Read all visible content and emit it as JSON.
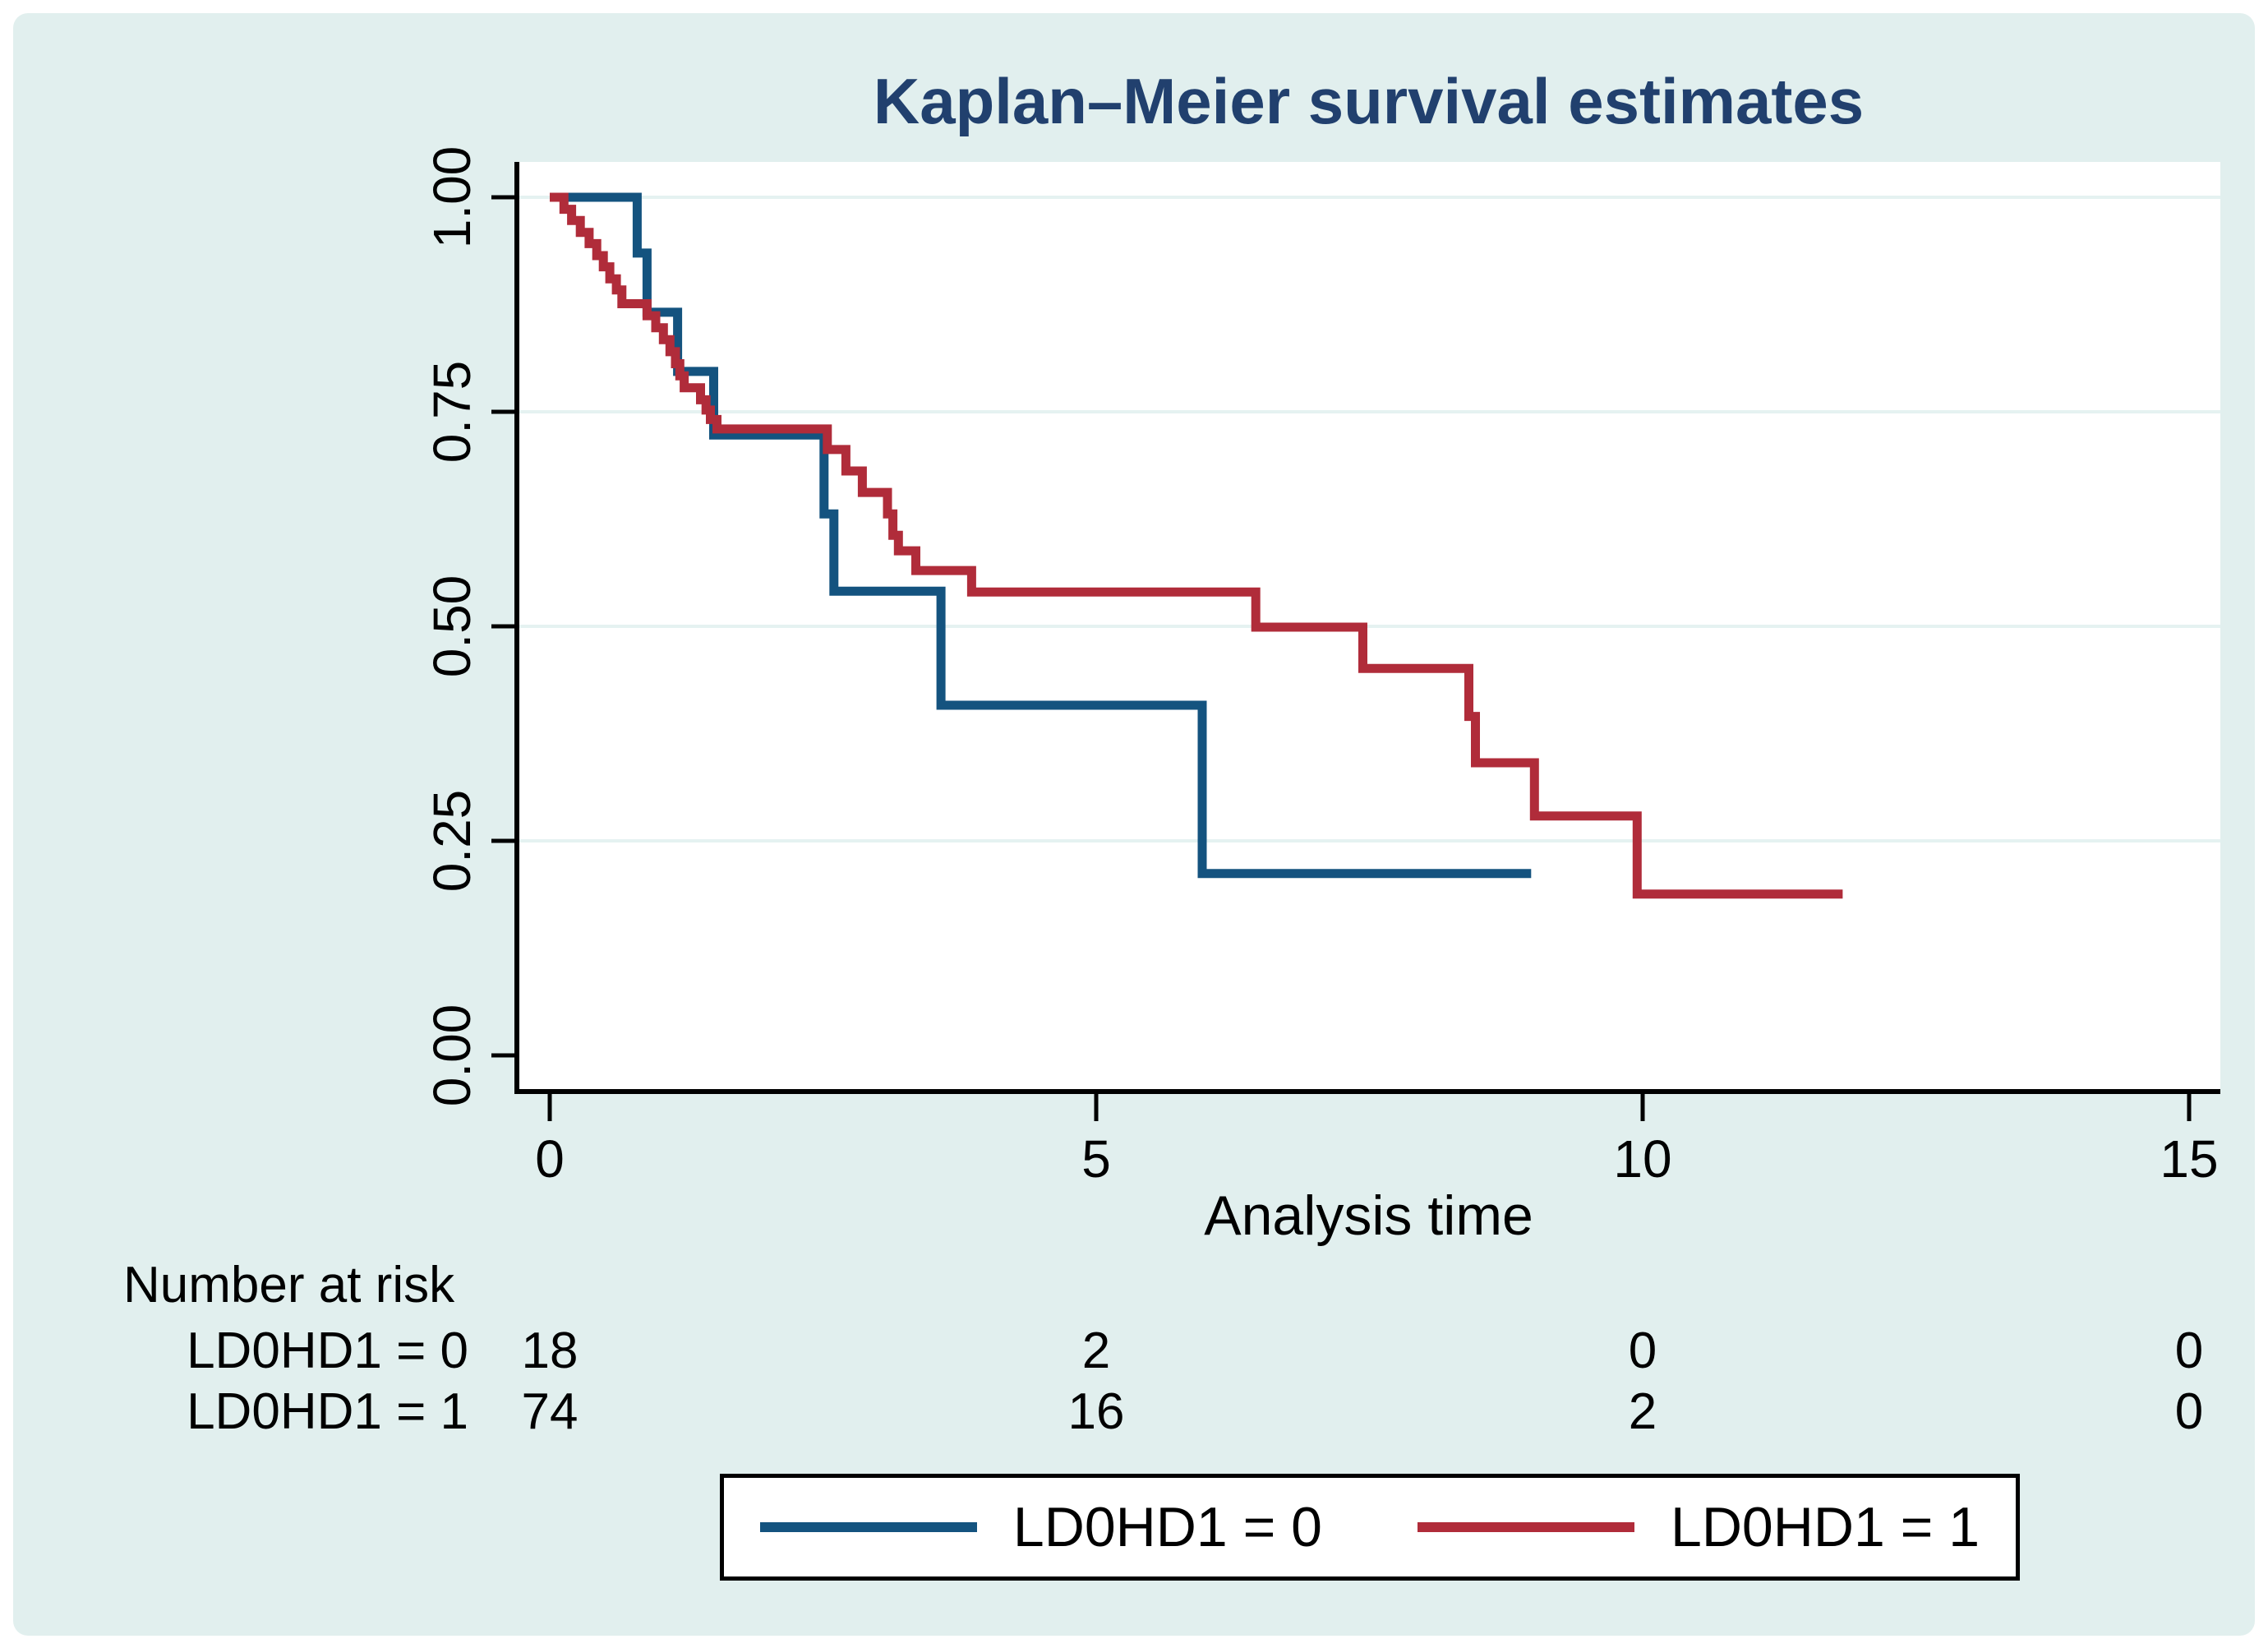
{
  "title": {
    "text": "Kaplan–Meier survival estimates"
  },
  "colors": {
    "panel_background": "#e1efee",
    "plot_background": "#ffffff",
    "gridline": "#e5f2f1",
    "axis": "#000000",
    "title_text": "#21406e",
    "group0_line": "#14537f",
    "group1_line": "#b02c3a",
    "legend_border": "#000000"
  },
  "chart_data": {
    "type": "line",
    "subtype": "kaplan-meier-step",
    "title": "Kaplan–Meier survival estimates",
    "xlabel": "Analysis time",
    "ylabel": "",
    "xlim": [
      0,
      15
    ],
    "ylim": [
      0.0,
      1.0
    ],
    "xticks": [
      0,
      5,
      10,
      15
    ],
    "xtick_labels": [
      "0",
      "5",
      "10",
      "15"
    ],
    "yticks": [
      1.0,
      0.75,
      0.5,
      0.25,
      0.0
    ],
    "ytick_labels": [
      "1.00",
      "0.75",
      "0.50",
      "0.25",
      "0.00"
    ],
    "grid": "horizontal-gridlines-at-yticks-except-0",
    "legend_position": "bottom-center-boxed",
    "series": [
      {
        "name": "LD0HD1 = 0",
        "color": "#14537f",
        "n_at_start": 18,
        "points": [
          [
            0,
            1.0
          ],
          [
            0.8,
            1.0
          ],
          [
            0.8,
            0.935
          ],
          [
            0.89,
            0.935
          ],
          [
            0.89,
            0.866
          ],
          [
            1.17,
            0.866
          ],
          [
            1.17,
            0.797
          ],
          [
            1.5,
            0.797
          ],
          [
            1.5,
            0.723
          ],
          [
            2.51,
            0.723
          ],
          [
            2.51,
            0.631
          ],
          [
            2.6,
            0.631
          ],
          [
            2.6,
            0.541
          ],
          [
            3.58,
            0.541
          ],
          [
            3.58,
            0.408
          ],
          [
            5.97,
            0.408
          ],
          [
            5.97,
            0.212
          ],
          [
            8.98,
            0.212
          ]
        ]
      },
      {
        "name": "LD0HD1 = 1",
        "color": "#b02c3a",
        "n_at_start": 74,
        "points": [
          [
            0,
            1.0
          ],
          [
            0.13,
            1.0
          ],
          [
            0.13,
            0.986
          ],
          [
            0.2,
            0.986
          ],
          [
            0.2,
            0.973
          ],
          [
            0.28,
            0.973
          ],
          [
            0.28,
            0.959
          ],
          [
            0.36,
            0.959
          ],
          [
            0.36,
            0.946
          ],
          [
            0.43,
            0.946
          ],
          [
            0.43,
            0.932
          ],
          [
            0.49,
            0.932
          ],
          [
            0.49,
            0.919
          ],
          [
            0.55,
            0.919
          ],
          [
            0.55,
            0.905
          ],
          [
            0.61,
            0.905
          ],
          [
            0.61,
            0.892
          ],
          [
            0.66,
            0.892
          ],
          [
            0.66,
            0.876
          ],
          [
            0.89,
            0.876
          ],
          [
            0.89,
            0.862
          ],
          [
            0.97,
            0.862
          ],
          [
            0.97,
            0.848
          ],
          [
            1.04,
            0.848
          ],
          [
            1.04,
            0.834
          ],
          [
            1.1,
            0.834
          ],
          [
            1.1,
            0.82
          ],
          [
            1.15,
            0.82
          ],
          [
            1.15,
            0.806
          ],
          [
            1.19,
            0.806
          ],
          [
            1.19,
            0.792
          ],
          [
            1.23,
            0.792
          ],
          [
            1.23,
            0.778
          ],
          [
            1.38,
            0.778
          ],
          [
            1.38,
            0.764
          ],
          [
            1.43,
            0.764
          ],
          [
            1.43,
            0.752
          ],
          [
            1.47,
            0.752
          ],
          [
            1.47,
            0.741
          ],
          [
            1.53,
            0.741
          ],
          [
            1.53,
            0.73
          ],
          [
            2.54,
            0.73
          ],
          [
            2.54,
            0.706
          ],
          [
            2.71,
            0.706
          ],
          [
            2.71,
            0.681
          ],
          [
            2.86,
            0.681
          ],
          [
            2.86,
            0.656
          ],
          [
            3.09,
            0.656
          ],
          [
            3.09,
            0.631
          ],
          [
            3.14,
            0.631
          ],
          [
            3.14,
            0.606
          ],
          [
            3.19,
            0.606
          ],
          [
            3.19,
            0.588
          ],
          [
            3.35,
            0.588
          ],
          [
            3.35,
            0.565
          ],
          [
            3.86,
            0.565
          ],
          [
            3.86,
            0.54
          ],
          [
            6.46,
            0.54
          ],
          [
            6.46,
            0.499
          ],
          [
            7.44,
            0.499
          ],
          [
            7.44,
            0.451
          ],
          [
            8.41,
            0.451
          ],
          [
            8.41,
            0.395
          ],
          [
            8.47,
            0.395
          ],
          [
            8.47,
            0.341
          ],
          [
            9.01,
            0.341
          ],
          [
            9.01,
            0.279
          ],
          [
            9.95,
            0.279
          ],
          [
            9.95,
            0.188
          ],
          [
            11.83,
            0.188
          ]
        ]
      }
    ]
  },
  "risk_table": {
    "heading": "Number at risk",
    "time_columns": [
      0,
      5,
      10,
      15
    ],
    "rows": [
      {
        "label": "LD0HD1 = 0",
        "values": [
          "18",
          "2",
          "0",
          "0"
        ]
      },
      {
        "label": "LD0HD1 = 1",
        "values": [
          "74",
          "16",
          "2",
          "0"
        ]
      }
    ]
  },
  "legend": {
    "entries": [
      {
        "label": "LD0HD1 = 0",
        "color": "#14537f"
      },
      {
        "label": "LD0HD1 = 1",
        "color": "#b02c3a"
      }
    ]
  }
}
